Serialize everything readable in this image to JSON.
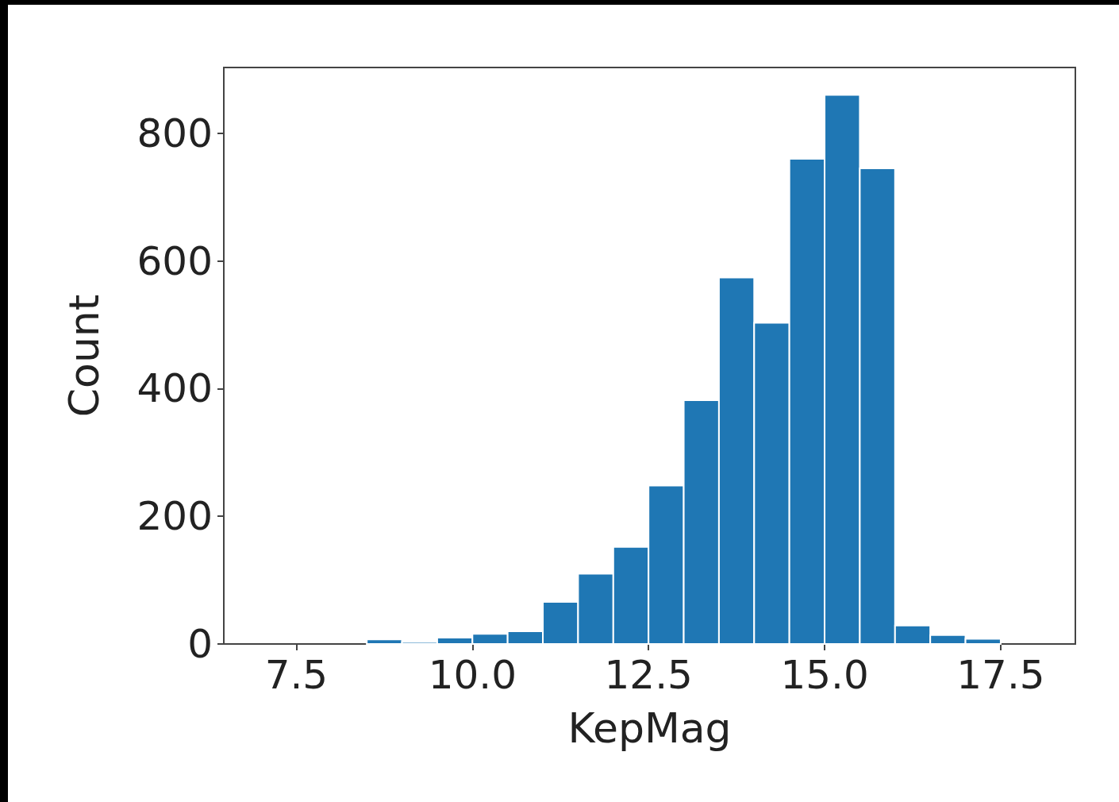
{
  "chart_data": {
    "type": "histogram",
    "xlabel": "KepMag",
    "ylabel": "Count",
    "color": "#1f77b4",
    "bins": [
      8.5,
      9.0,
      9.5,
      10.0,
      10.5,
      11.0,
      11.5,
      12.0,
      12.5,
      13.0,
      13.5,
      14.0,
      14.5,
      15.0,
      15.5,
      16.0,
      16.5,
      17.0,
      17.5
    ],
    "values": [
      7,
      3,
      10,
      16,
      20,
      66,
      110,
      152,
      248,
      382,
      574,
      503,
      760,
      860,
      745,
      29,
      14,
      8
    ],
    "xlim": [
      6.47,
      18.56
    ],
    "xticks": [
      {
        "value": 7.5,
        "label": "7.5"
      },
      {
        "value": 10,
        "label": "10.0"
      },
      {
        "value": 12.5,
        "label": "12.5"
      },
      {
        "value": 15,
        "label": "15.0"
      },
      {
        "value": 17.5,
        "label": "17.5"
      }
    ],
    "ylim": [
      0,
      903
    ],
    "yticks": [
      0,
      200,
      400,
      600,
      800
    ],
    "grid": false
  }
}
